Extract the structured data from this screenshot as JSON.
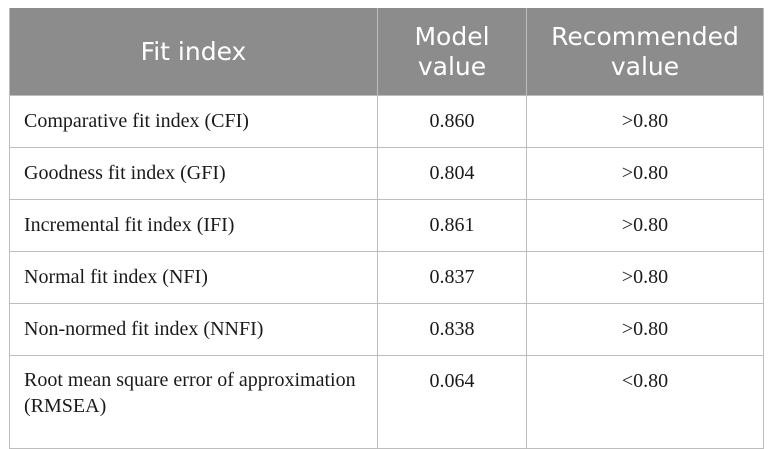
{
  "table": {
    "headers": [
      "Fit index",
      "Model value",
      "Recommended value"
    ],
    "header_color": "#8c8c8c",
    "rows": [
      [
        "Comparative fit index (CFI)",
        "0.860",
        ">0.80"
      ],
      [
        "Goodness fit index (GFI)",
        "0.804",
        ">0.80"
      ],
      [
        "Incremental fit index (IFI)",
        "0.861",
        ">0.80"
      ],
      [
        "Normal fit index (NFI)",
        "0.837",
        ">0.80"
      ],
      [
        "Non-normed fit index (NNFI)",
        "0.838",
        ">0.80"
      ],
      [
        "Root mean square error of approximation (RMSEA)",
        "0.064",
        "<0.80"
      ]
    ]
  }
}
